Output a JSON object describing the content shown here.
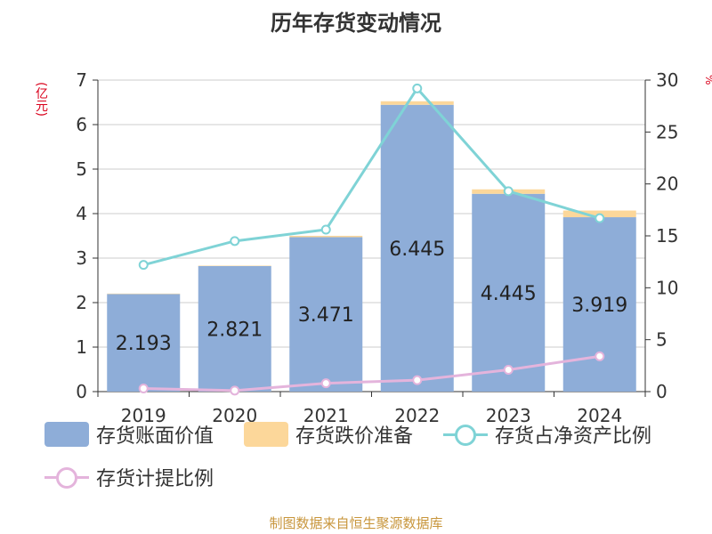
{
  "title": "历年存货变动情况",
  "units": {
    "left": "(亿元)",
    "right": "%"
  },
  "footer": "制图数据来自恒生聚源数据库",
  "colors": {
    "book_value": "#8eadd8",
    "provision": "#fcd79a",
    "ratio_net_assets": "#7fd3d6",
    "provision_ratio": "#e4b4dc",
    "grid": "#cccccc",
    "axis": "#333333"
  },
  "legend": [
    {
      "label": "存货账面价值",
      "kind": "bar",
      "color": "#8eadd8"
    },
    {
      "label": "存货跌价准备",
      "kind": "bar",
      "color": "#fcd79a"
    },
    {
      "label": "存货占净资产比例",
      "kind": "line",
      "color": "#7fd3d6"
    },
    {
      "label": "存货计提比例",
      "kind": "line",
      "color": "#e4b4dc"
    }
  ],
  "chart_data": {
    "type": "bar",
    "title": "历年存货变动情况",
    "categories": [
      "2019",
      "2020",
      "2021",
      "2022",
      "2023",
      "2024"
    ],
    "y_left": {
      "label": "(亿元)",
      "ylim": [
        0,
        7
      ],
      "ticks": [
        "0",
        "1",
        "2",
        "3",
        "4",
        "5",
        "6",
        "7"
      ]
    },
    "y_right": {
      "label": "%",
      "ylim": [
        0,
        30
      ],
      "ticks": [
        "0",
        "5",
        "10",
        "15",
        "20",
        "25",
        "30"
      ]
    },
    "grid": true,
    "legend_position": "bottom",
    "series": [
      {
        "name": "存货账面价值",
        "type": "bar",
        "stack": "inventory",
        "axis": "left",
        "values": [
          2.193,
          2.821,
          3.471,
          6.445,
          4.445,
          3.919
        ],
        "data_labels": [
          "2.193",
          "2.821",
          "3.471",
          "6.445",
          "4.445",
          "3.919"
        ]
      },
      {
        "name": "存货跌价准备",
        "type": "bar",
        "stack": "inventory",
        "axis": "left",
        "values": [
          0.01,
          0.01,
          0.03,
          0.08,
          0.1,
          0.15
        ]
      },
      {
        "name": "存货占净资产比例",
        "type": "line",
        "axis": "right",
        "values": [
          12.2,
          14.5,
          15.6,
          29.2,
          19.3,
          16.7
        ]
      },
      {
        "name": "存货计提比例",
        "type": "line",
        "axis": "right",
        "values": [
          0.3,
          0.1,
          0.8,
          1.1,
          2.1,
          3.4
        ]
      }
    ]
  }
}
